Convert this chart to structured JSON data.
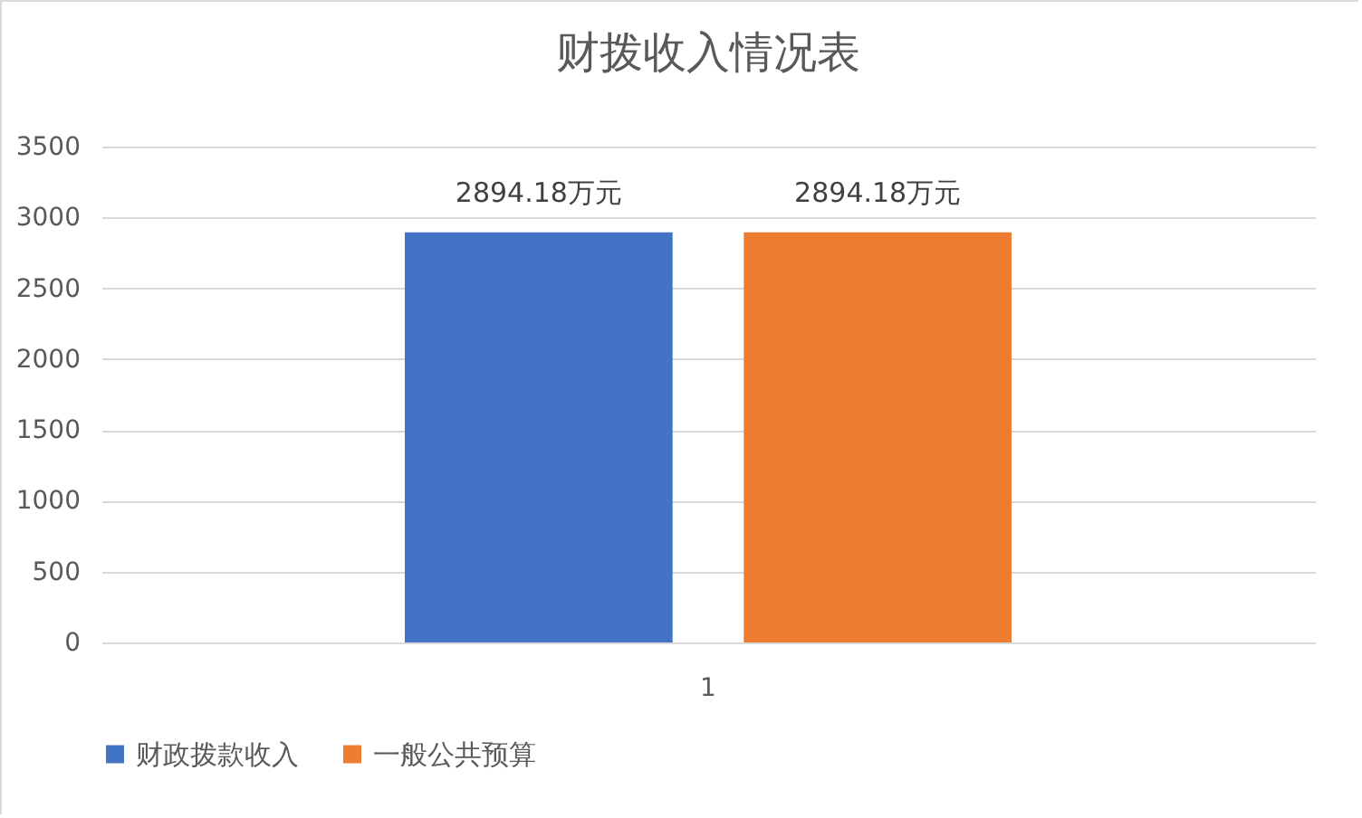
{
  "chart_data": {
    "type": "bar",
    "title": "财拨收入情况表",
    "categories": [
      "1"
    ],
    "series": [
      {
        "name": "财政拨款收入",
        "color": "#4472c4",
        "values": [
          2894.18
        ],
        "value_labels": [
          "2894.18万元"
        ]
      },
      {
        "name": "一般公共预算",
        "color": "#ed7d31",
        "values": [
          2894.18
        ],
        "value_labels": [
          "2894.18万元"
        ]
      }
    ],
    "ylim": [
      0,
      3500
    ],
    "yticks": [
      0,
      500,
      1000,
      1500,
      2000,
      2500,
      3000,
      3500
    ],
    "grid": "y",
    "legend": "bottom"
  }
}
